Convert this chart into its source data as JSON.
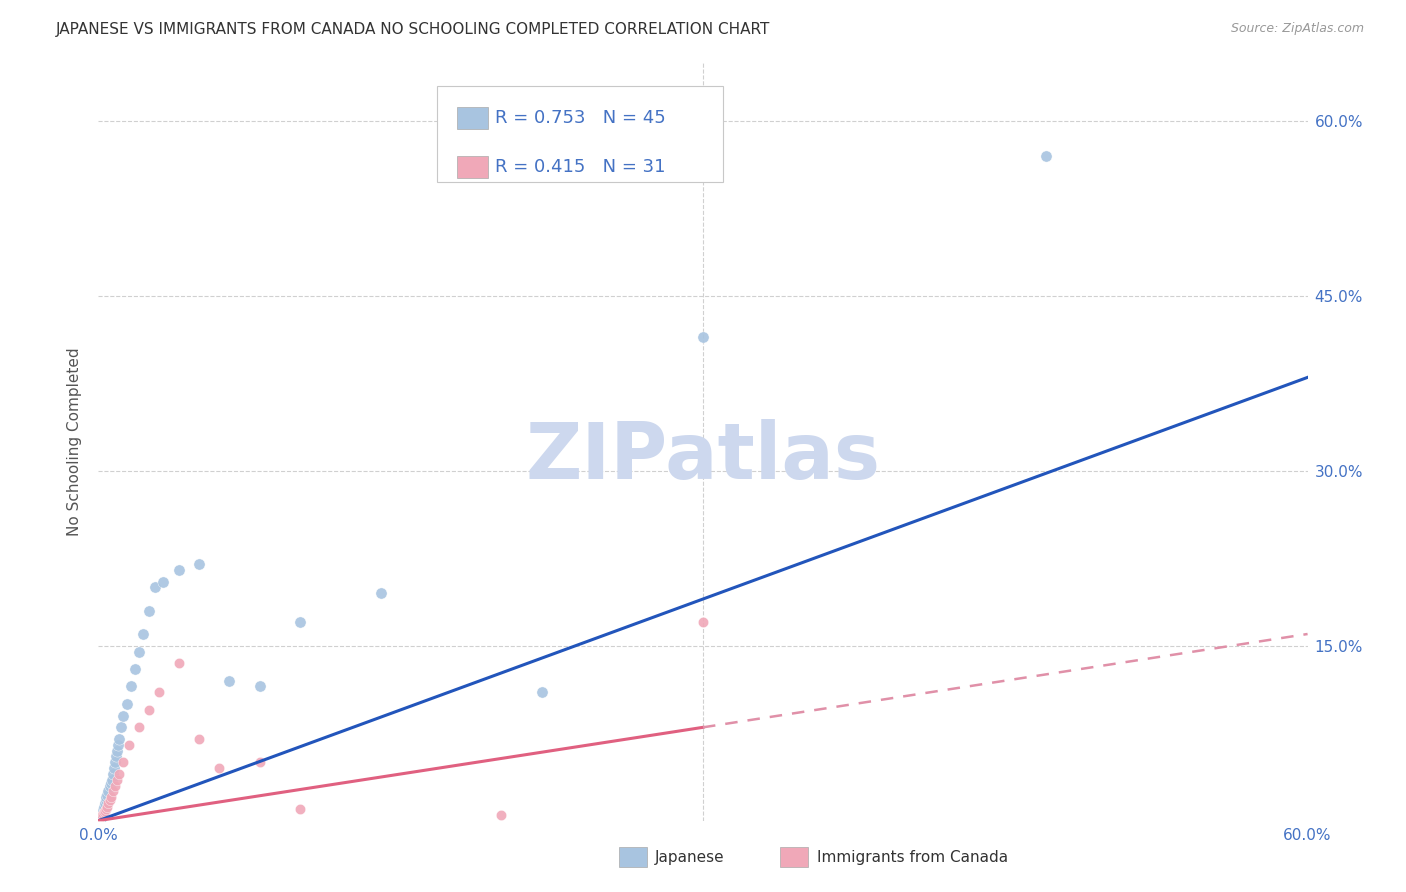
{
  "title": "JAPANESE VS IMMIGRANTS FROM CANADA NO SCHOOLING COMPLETED CORRELATION CHART",
  "source_text": "Source: ZipAtlas.com",
  "ylabel": "No Schooling Completed",
  "xlim": [
    0,
    60
  ],
  "ylim": [
    0,
    65
  ],
  "x_ticks": [
    0,
    15,
    30,
    45,
    60
  ],
  "y_ticks": [
    0,
    15,
    30,
    45,
    60
  ],
  "blue_R": 0.753,
  "blue_N": 45,
  "pink_R": 0.415,
  "pink_N": 31,
  "blue_color": "#a8c4e0",
  "pink_color": "#f0a8b8",
  "blue_line_color": "#2255bb",
  "pink_line_color": "#e06080",
  "pink_dash_color": "#e090a8",
  "title_color": "#333333",
  "axis_tick_color": "#4472c4",
  "grid_color": "#d0d0d0",
  "watermark_color": "#cdd8ee",
  "watermark_text": "ZIPatlas",
  "blue_scatter_x": [
    0.05,
    0.08,
    0.1,
    0.12,
    0.15,
    0.18,
    0.2,
    0.22,
    0.25,
    0.28,
    0.3,
    0.35,
    0.38,
    0.4,
    0.45,
    0.5,
    0.55,
    0.6,
    0.65,
    0.7,
    0.75,
    0.8,
    0.85,
    0.9,
    0.95,
    1.0,
    1.1,
    1.2,
    1.4,
    1.6,
    1.8,
    2.0,
    2.2,
    2.5,
    2.8,
    3.2,
    4.0,
    5.0,
    6.5,
    8.0,
    10.0,
    14.0,
    22.0,
    47.0,
    30.0
  ],
  "blue_scatter_y": [
    0.1,
    0.2,
    0.3,
    0.2,
    0.4,
    0.5,
    0.6,
    0.8,
    0.9,
    1.0,
    1.2,
    1.5,
    1.8,
    2.0,
    2.2,
    2.5,
    3.0,
    3.2,
    3.5,
    4.0,
    4.5,
    5.0,
    5.5,
    6.0,
    6.5,
    7.0,
    8.0,
    9.0,
    10.0,
    11.5,
    13.0,
    14.5,
    16.0,
    18.0,
    20.0,
    20.5,
    21.5,
    22.0,
    12.0,
    11.5,
    17.0,
    19.5,
    11.0,
    57.0,
    41.5
  ],
  "pink_scatter_x": [
    0.05,
    0.08,
    0.1,
    0.12,
    0.15,
    0.18,
    0.2,
    0.25,
    0.3,
    0.35,
    0.4,
    0.45,
    0.5,
    0.55,
    0.6,
    0.7,
    0.8,
    0.9,
    1.0,
    1.2,
    1.5,
    2.0,
    2.5,
    3.0,
    4.0,
    5.0,
    6.0,
    8.0,
    30.0,
    10.0,
    20.0
  ],
  "pink_scatter_y": [
    0.1,
    0.2,
    0.2,
    0.3,
    0.4,
    0.5,
    0.5,
    0.6,
    0.7,
    0.8,
    1.0,
    1.2,
    1.5,
    1.8,
    2.0,
    2.5,
    3.0,
    3.5,
    4.0,
    5.0,
    6.5,
    8.0,
    9.5,
    11.0,
    13.5,
    7.0,
    4.5,
    5.0,
    17.0,
    1.0,
    0.5
  ],
  "blue_line_x0": 0,
  "blue_line_y0": 0,
  "blue_line_x1": 60,
  "blue_line_y1": 38,
  "pink_solid_x0": 0,
  "pink_solid_y0": 0,
  "pink_solid_x1": 30,
  "pink_solid_y1": 8,
  "pink_dash_x0": 30,
  "pink_dash_y0": 8,
  "pink_dash_x1": 60,
  "pink_dash_y1": 16
}
